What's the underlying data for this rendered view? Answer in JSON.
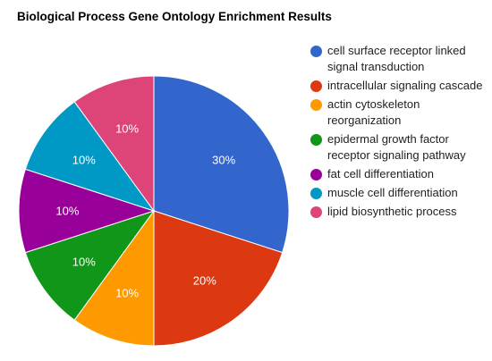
{
  "chart_data": {
    "type": "pie",
    "title": "Biological Process Gene Ontology Enrichment Results",
    "legend_position": "right",
    "slices": [
      {
        "label": "cell surface receptor linked signal transduction",
        "value": 30,
        "display": "30%",
        "color": "#3366cc"
      },
      {
        "label": "intracellular signaling cascade",
        "value": 20,
        "display": "20%",
        "color": "#dc3912"
      },
      {
        "label": "actin cytoskeleton reorganization",
        "value": 10,
        "display": "10%",
        "color": "#ff9900"
      },
      {
        "label": "epidermal growth factor receptor signaling pathway",
        "value": 10,
        "display": "10%",
        "color": "#109618"
      },
      {
        "label": "fat cell differentiation",
        "value": 10,
        "display": "10%",
        "color": "#990099"
      },
      {
        "label": "muscle cell differentiation",
        "value": 10,
        "display": "10%",
        "color": "#0099c6"
      },
      {
        "label": "lipid biosynthetic process",
        "value": 10,
        "display": "10%",
        "color": "#dd4477"
      }
    ]
  }
}
